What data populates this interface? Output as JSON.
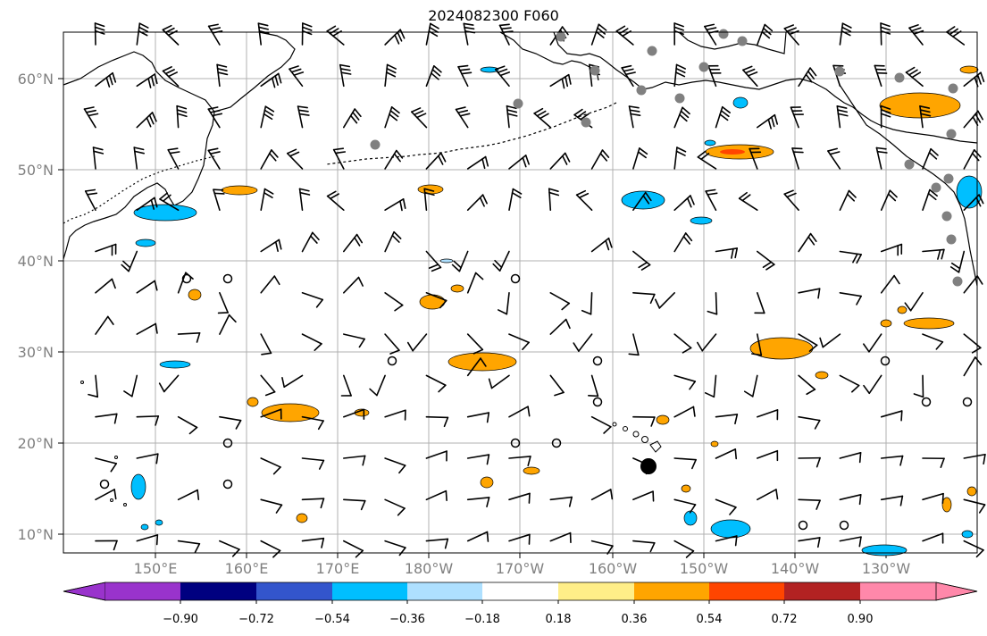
{
  "title": "2024082300 F060",
  "map": {
    "lon_labels": [
      "150°E",
      "160°E",
      "170°E",
      "180°W",
      "170°W",
      "160°W",
      "150°W",
      "140°W",
      "130°W"
    ],
    "lat_labels": [
      "60°N",
      "50°N",
      "40°N",
      "30°N",
      "20°N",
      "10°N"
    ],
    "label_color": "#808080",
    "gridline_color": "#b0b0b0"
  },
  "colorbar": {
    "tick_labels": [
      "−0.90",
      "−0.72",
      "−0.54",
      "−0.36",
      "−0.18",
      "0.18",
      "0.36",
      "0.54",
      "0.72",
      "0.90"
    ],
    "colors": [
      "#9933cc",
      "#000080",
      "#3355cc",
      "#00bfff",
      "#aee0ff",
      "#ffffff",
      "#ffee88",
      "#ffa500",
      "#ff4500",
      "#b22222",
      "#ff88aa"
    ]
  },
  "markers": {
    "station_dot_color": "#808080",
    "center_dot_color": "#000000"
  }
}
